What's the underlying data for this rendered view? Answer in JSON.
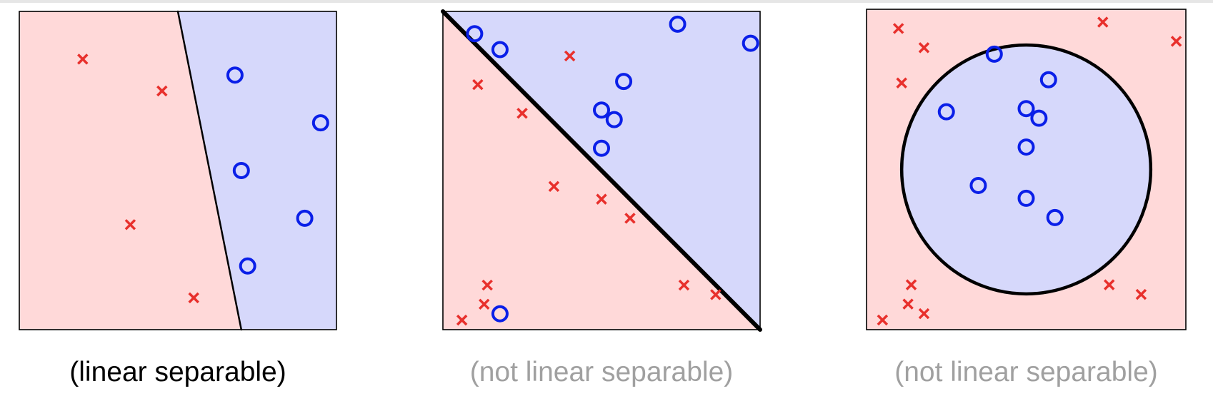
{
  "colors": {
    "red_region": "#ffd9d9",
    "blue_region": "#d6d8fb",
    "cross": "#e8302c",
    "circle": "#0a1fe8",
    "boundary": "#000000",
    "caption_active": "#000000",
    "caption_muted": "#a0a0a0"
  },
  "marker_names": {
    "cross": "cross-marker",
    "circle": "circle-marker"
  },
  "panels": [
    {
      "id": "linear",
      "caption": "(linear separable)",
      "caption_state": "active",
      "boundary": {
        "type": "line",
        "from": [
          0.5,
          1.0
        ],
        "to": [
          0.7,
          0.0
        ]
      },
      "crosses": [
        [
          0.2,
          0.85
        ],
        [
          0.45,
          0.75
        ],
        [
          0.35,
          0.33
        ],
        [
          0.55,
          0.1
        ]
      ],
      "circles": [
        [
          0.68,
          0.8
        ],
        [
          0.95,
          0.65
        ],
        [
          0.7,
          0.5
        ],
        [
          0.9,
          0.35
        ],
        [
          0.72,
          0.2
        ]
      ]
    },
    {
      "id": "diagonal",
      "caption": "(not linear separable)",
      "caption_state": "muted",
      "boundary": {
        "type": "line",
        "from": [
          0.0,
          1.0
        ],
        "to": [
          1.0,
          0.0
        ]
      },
      "crosses": [
        [
          0.4,
          0.86
        ],
        [
          0.11,
          0.77
        ],
        [
          0.25,
          0.68
        ],
        [
          0.35,
          0.45
        ],
        [
          0.5,
          0.41
        ],
        [
          0.59,
          0.35
        ],
        [
          0.14,
          0.14
        ],
        [
          0.13,
          0.08
        ],
        [
          0.06,
          0.03
        ],
        [
          0.76,
          0.14
        ],
        [
          0.86,
          0.11
        ]
      ],
      "circles": [
        [
          0.1,
          0.93
        ],
        [
          0.18,
          0.88
        ],
        [
          0.74,
          0.96
        ],
        [
          0.97,
          0.9
        ],
        [
          0.57,
          0.78
        ],
        [
          0.5,
          0.69
        ],
        [
          0.54,
          0.66
        ],
        [
          0.5,
          0.57
        ],
        [
          0.18,
          0.05
        ]
      ]
    },
    {
      "id": "circle",
      "caption": "(not linear separable)",
      "caption_state": "muted",
      "boundary": {
        "type": "circle",
        "center": [
          0.5,
          0.5
        ],
        "radius": 0.39
      },
      "crosses": [
        [
          0.1,
          0.94
        ],
        [
          0.18,
          0.88
        ],
        [
          0.11,
          0.77
        ],
        [
          0.74,
          0.96
        ],
        [
          0.97,
          0.9
        ],
        [
          0.14,
          0.14
        ],
        [
          0.13,
          0.08
        ],
        [
          0.18,
          0.05
        ],
        [
          0.05,
          0.03
        ],
        [
          0.76,
          0.14
        ],
        [
          0.86,
          0.11
        ]
      ],
      "circles": [
        [
          0.4,
          0.86
        ],
        [
          0.57,
          0.78
        ],
        [
          0.25,
          0.68
        ],
        [
          0.5,
          0.69
        ],
        [
          0.54,
          0.66
        ],
        [
          0.5,
          0.57
        ],
        [
          0.35,
          0.45
        ],
        [
          0.5,
          0.41
        ],
        [
          0.59,
          0.35
        ]
      ]
    }
  ]
}
